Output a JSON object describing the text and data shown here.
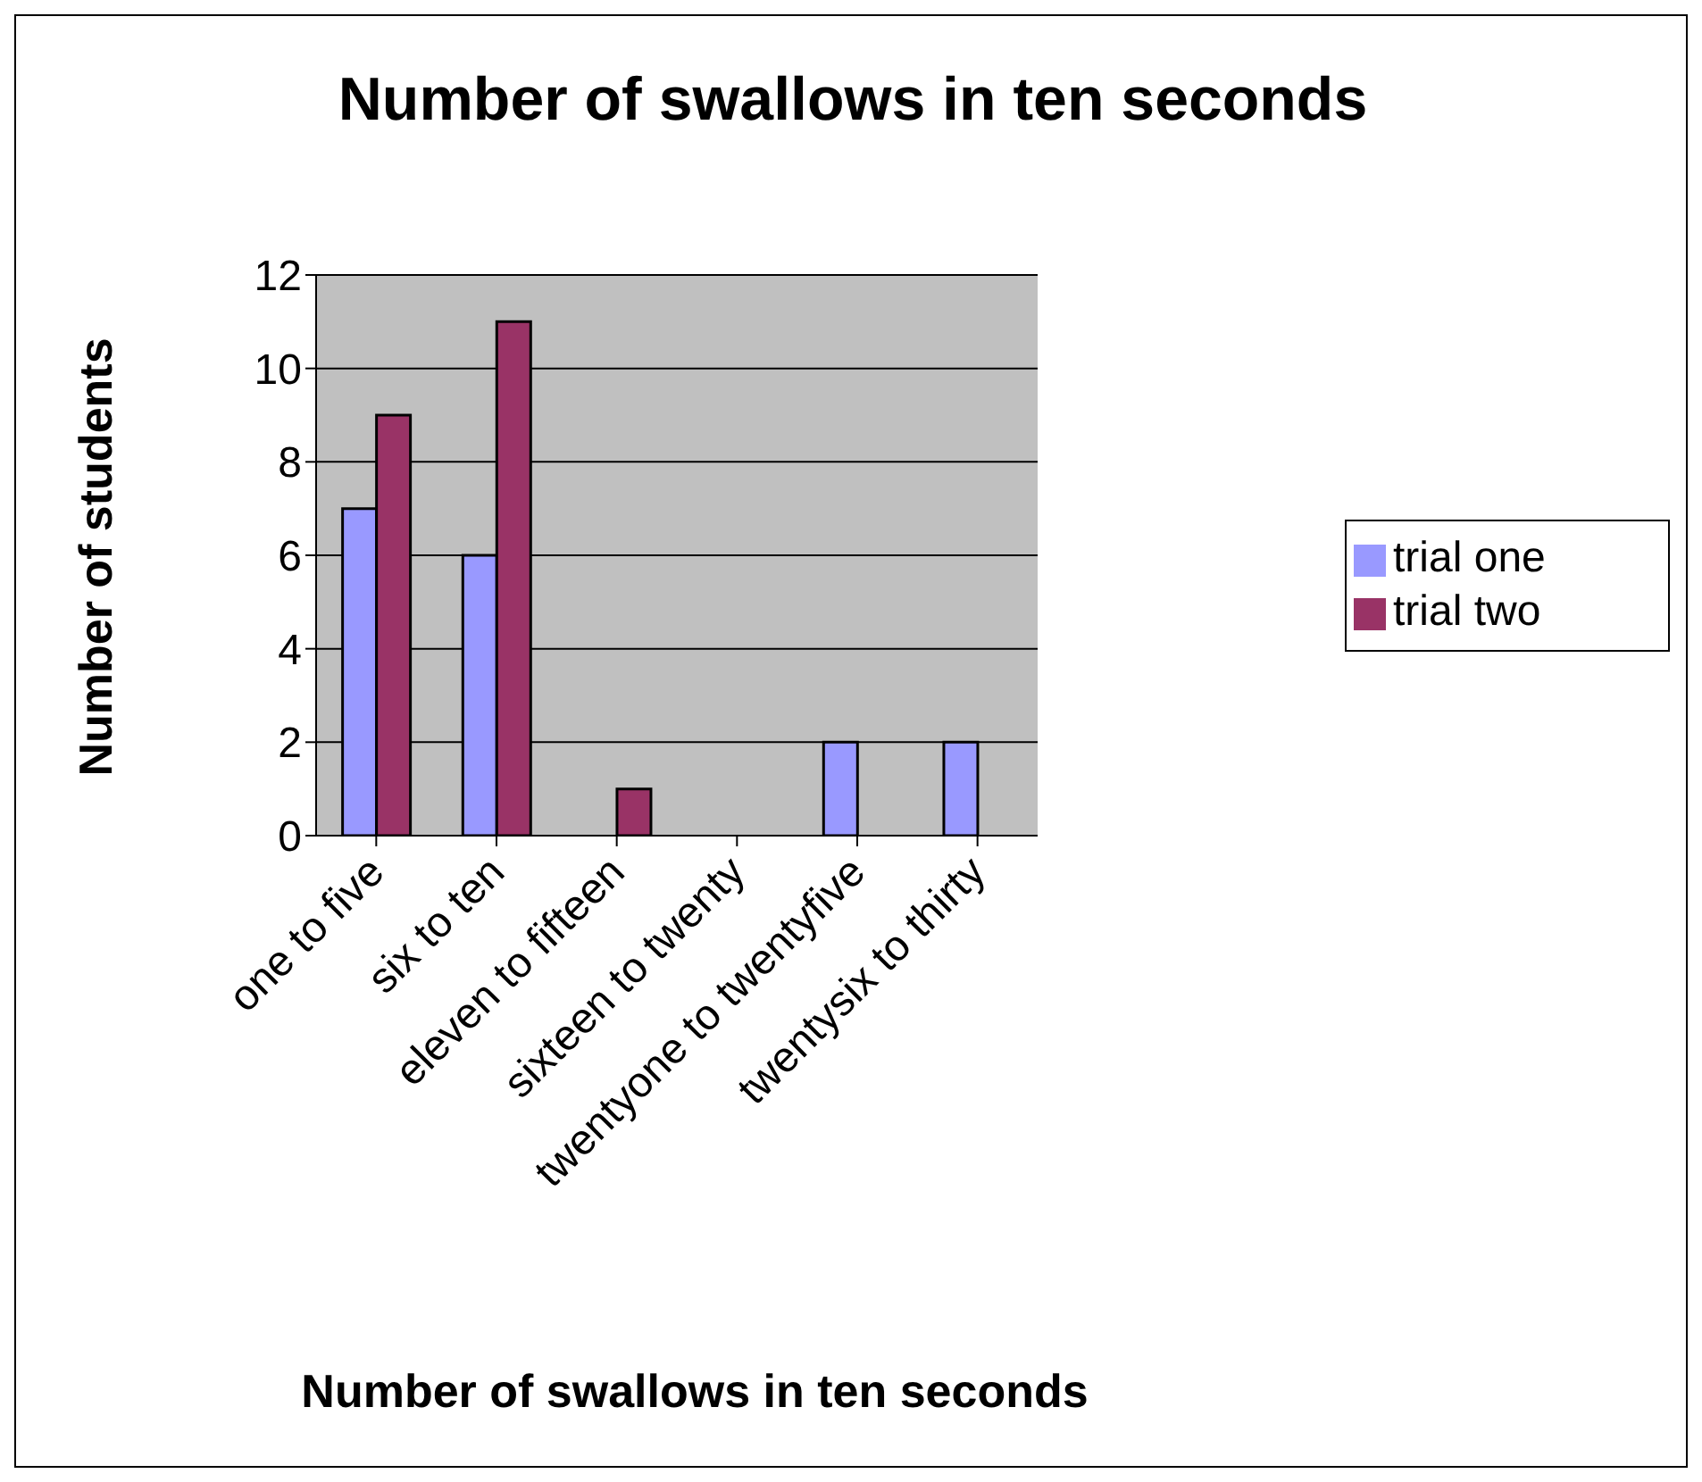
{
  "chart_data": {
    "type": "bar",
    "title": "Number of swallows in ten seconds",
    "xlabel": "Number of swallows in ten seconds",
    "ylabel": "Number of students",
    "categories": [
      "one to five",
      "six to ten",
      "eleven to fifteen",
      "sixteen to twenty",
      "twentyone to twentyfive",
      "twentysix to thirty"
    ],
    "series": [
      {
        "name": "trial one",
        "color": "#9999ff",
        "values": [
          7,
          6,
          0,
          0,
          2,
          2
        ]
      },
      {
        "name": "trial two",
        "color": "#993366",
        "values": [
          9,
          11,
          1,
          0,
          0,
          0
        ]
      }
    ],
    "ylim": [
      0,
      12
    ],
    "yticks": [
      0,
      2,
      4,
      6,
      8,
      10,
      12
    ],
    "grid": "y",
    "legend": "right"
  }
}
